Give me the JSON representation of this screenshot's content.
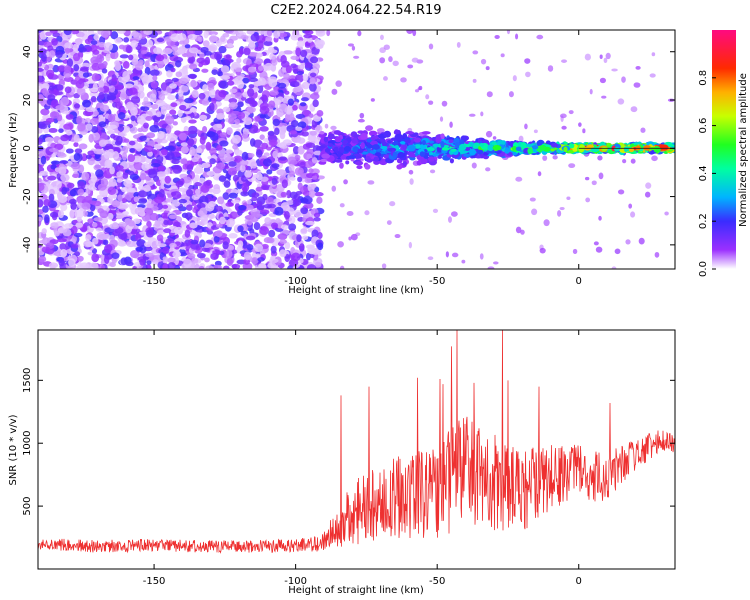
{
  "title": "C2E2.2024.064.22.54.R19",
  "chart_data": [
    {
      "type": "heatmap",
      "title": "C2E2.2024.064.22.54.R19",
      "xlabel": "Height of straight line (km)",
      "ylabel": "Frequency (Hz)",
      "xlim": [
        -191,
        34
      ],
      "ylim": [
        -50,
        49
      ],
      "xticks": [
        -150,
        -100,
        -50,
        0
      ],
      "yticks": [
        -40,
        -20,
        0,
        20,
        40
      ],
      "colorbar": {
        "label": "Normalized spectral amplitude",
        "range": [
          0,
          1
        ],
        "ticks": [
          0.0,
          0.2,
          0.4,
          0.6,
          0.8
        ],
        "colormap": "rainbow (white → violet → blue → cyan → green → yellow → red → magenta)"
      },
      "description_data": {
        "noise_region_x": [
          -191,
          -91
        ],
        "noise_amplitude": 0.1,
        "signal_onset_x": -91,
        "signal_center_hz": 0,
        "signal_band_halfwidth_hz": [
          [
            -90,
            7
          ],
          [
            -60,
            7
          ],
          [
            -40,
            4
          ],
          [
            -20,
            2
          ],
          [
            0,
            1.5
          ],
          [
            34,
            1.5
          ]
        ],
        "peak_amplitude_near_x": [
          [
            -90,
            0.25
          ],
          [
            -60,
            0.35
          ],
          [
            -40,
            0.45
          ],
          [
            -10,
            0.7
          ],
          [
            5,
            0.9
          ],
          [
            30,
            0.9
          ]
        ]
      }
    },
    {
      "type": "line",
      "xlabel": "Height of straight line (km)",
      "ylabel": "SNR (10 * v/v)",
      "xlim": [
        -191,
        34
      ],
      "ylim": [
        0,
        1900
      ],
      "xticks": [
        -150,
        -100,
        -50,
        0
      ],
      "yticks": [
        500,
        1000,
        1500
      ],
      "color": "#ee3030",
      "x": [
        -191,
        -171,
        -151,
        -131,
        -111,
        -91,
        -81,
        -71,
        -61,
        -51,
        -41,
        -31,
        -21,
        -11,
        -1,
        9,
        19,
        29,
        34
      ],
      "y": [
        200,
        180,
        190,
        180,
        180,
        200,
        420,
        550,
        570,
        610,
        780,
        680,
        600,
        730,
        780,
        720,
        900,
        1020,
        980
      ],
      "noise_halfwidth": [
        50,
        50,
        50,
        50,
        50,
        60,
        250,
        330,
        330,
        380,
        450,
        420,
        350,
        280,
        210,
        200,
        130,
        90,
        80
      ],
      "spikes": [
        [
          -84,
          1380
        ],
        [
          -74,
          1450
        ],
        [
          -57,
          1520
        ],
        [
          -49,
          1510
        ],
        [
          -48,
          1470
        ],
        [
          -45,
          1770
        ],
        [
          -43,
          1900
        ],
        [
          -37,
          1480
        ],
        [
          -27,
          1900
        ],
        [
          -25,
          1500
        ],
        [
          -14,
          1450
        ],
        [
          11,
          1320
        ]
      ]
    }
  ]
}
